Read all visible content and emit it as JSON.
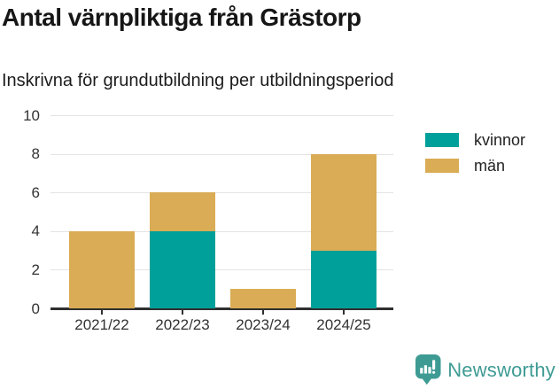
{
  "header": {
    "title": "Antal värnpliktiga från Grästorp",
    "subtitle": "Inskrivna för grundutbildning per utbildningsperiod"
  },
  "chart_data": {
    "type": "bar",
    "stacked": true,
    "categories": [
      "2021/22",
      "2022/23",
      "2023/24",
      "2024/25"
    ],
    "series": [
      {
        "name": "kvinnor",
        "color": "#00a09a",
        "values": [
          0,
          4,
          0,
          3
        ]
      },
      {
        "name": "män",
        "color": "#d9ac55",
        "values": [
          4,
          2,
          1,
          5
        ]
      }
    ],
    "totals": [
      4,
      6,
      1,
      8
    ],
    "title": "Antal värnpliktiga från Grästorp",
    "subtitle": "Inskrivna för grundutbildning per utbildningsperiod",
    "xlabel": "",
    "ylabel": "",
    "ylim": [
      0,
      10
    ],
    "yticks": [
      0,
      2,
      4,
      6,
      8,
      10
    ],
    "grid": true,
    "legend_position": "top-right"
  },
  "legend": {
    "items": [
      {
        "label": "kvinnor",
        "color": "#00a09a"
      },
      {
        "label": "män",
        "color": "#d9ac55"
      }
    ]
  },
  "footer": {
    "brand": "Newsworthy",
    "brand_color": "#3e9b94"
  },
  "colors": {
    "kvinnor": "#00a09a",
    "man": "#d9ac55",
    "gridline": "#e4e4e4",
    "axis": "#2f2f2f",
    "text": "#161616"
  }
}
